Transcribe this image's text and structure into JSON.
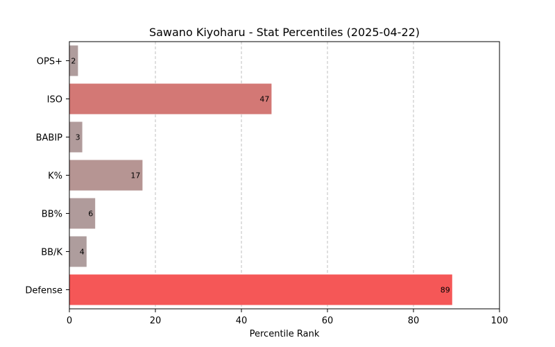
{
  "chart_data": {
    "type": "bar",
    "orientation": "horizontal",
    "title": "Sawano Kiyoharu - Stat Percentiles (2025-04-22)",
    "xlabel": "Percentile Rank",
    "ylabel": "",
    "xlim": [
      0,
      100
    ],
    "xticks": [
      0,
      20,
      40,
      60,
      80,
      100
    ],
    "grid": "x-dashed",
    "categories": [
      "OPS+",
      "ISO",
      "BABIP",
      "K%",
      "BB%",
      "BB/K",
      "Defense"
    ],
    "values": [
      2,
      47,
      3,
      17,
      6,
      4,
      89
    ],
    "colors": [
      "#af9c9c",
      "#d37875",
      "#b19b9b",
      "#b69593",
      "#b09b9b",
      "#ae9d9d",
      "#f55757"
    ]
  }
}
